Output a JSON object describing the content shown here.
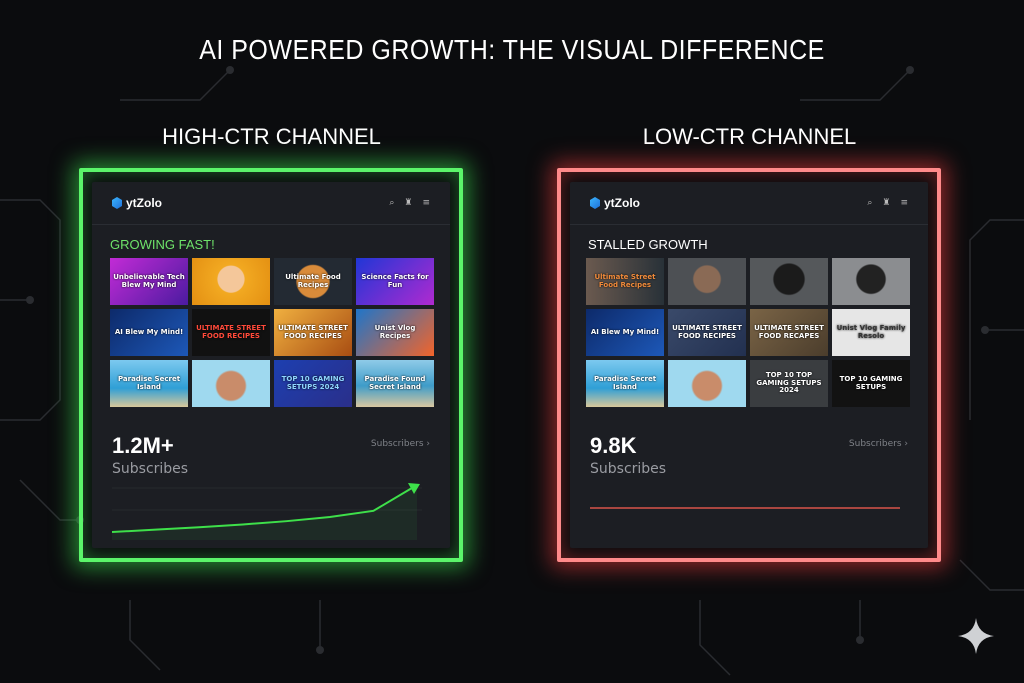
{
  "title": "AI POWERED GROWTH: THE VISUAL DIFFERENCE",
  "colors": {
    "high": "#5bf56a",
    "low": "#ff8a8a",
    "background": "#0b0c0e",
    "panel": "#1c1e23"
  },
  "high": {
    "heading": "HIGH-CTR CHANNEL",
    "brand": "ytZolo",
    "icons": [
      "search-icon",
      "bell-icon",
      "menu-icon"
    ],
    "section": "GROWING FAST!",
    "thumbnails": [
      {
        "text": "Unbelievable Tech Blew My Mind",
        "bg": "linear-gradient(135deg,#c22bd6,#4b1ba0)",
        "color": "#fff"
      },
      {
        "text": "",
        "bg": "radial-gradient(circle at 50% 45%,#f4c79a 0 28%,#f2a921 30%,#e38f12)",
        "color": "#fff"
      },
      {
        "text": "Ultimate Food Recipes",
        "bg": "radial-gradient(circle,#d98b3a 0 35%,#232a33 38%)",
        "color": "#fff"
      },
      {
        "text": "Science Facts for Fun",
        "bg": "linear-gradient(135deg,#2036d6,#b02ad0)",
        "color": "#fff"
      },
      {
        "text": "AI Blew My Mind!",
        "bg": "linear-gradient(135deg,#0d2a6a,#1d58b8)",
        "color": "#fff"
      },
      {
        "text": "ULTIMATE STREET FOOD RECIPES",
        "bg": "#111",
        "color": "#ff4a3a"
      },
      {
        "text": "ULTIMATE STREET FOOD RECIPES",
        "bg": "linear-gradient(135deg,#f0b040,#a84d12)",
        "color": "#fff"
      },
      {
        "text": "Unist Vlog Recipes",
        "bg": "linear-gradient(135deg,#1f75c9,#f2642a)",
        "color": "#fff"
      },
      {
        "text": "Paradise Secret Island",
        "bg": "linear-gradient(180deg,#7cc9ef,#2f9fd6 60%,#d8c89a)",
        "color": "#fff"
      },
      {
        "text": "",
        "bg": "radial-gradient(circle at 50% 55%,#c98c6a 0 30%,#9fd9ef 34%)",
        "color": "#fff"
      },
      {
        "text": "TOP 10 GAMING SETUPS 2024",
        "bg": "linear-gradient(135deg,#1d3fb0,#2a2f8a)",
        "color": "#8fd6ff"
      },
      {
        "text": "Paradise Found Secret Island",
        "bg": "linear-gradient(180deg,#8fcbe8,#3e9cc9 55%,#d9c7a0)",
        "color": "#fff"
      }
    ],
    "count": "1.2M+",
    "count_label": "Subscribes",
    "link": "Subscribers",
    "trend": [
      0,
      0.05,
      0.1,
      0.16,
      0.23,
      0.32,
      0.45,
      1
    ]
  },
  "low": {
    "heading": "LOW-CTR CHANNEL",
    "brand": "ytZolo",
    "icons": [
      "search-icon",
      "bell-icon",
      "menu-icon"
    ],
    "section": "STALLED GROWTH",
    "thumbnails": [
      {
        "text": "Ultimate Street Food Recipes",
        "bg": "linear-gradient(90deg,#6b5a4f,#283138)",
        "color": "#f08a3a"
      },
      {
        "text": "",
        "bg": "radial-gradient(circle at 50% 45%,#8a6a55 0 28%,#4d5054 31%)",
        "color": "#fff"
      },
      {
        "text": "",
        "bg": "radial-gradient(circle at 50% 45%,#1b1b1b 0 32%,#55585b 35%)",
        "color": "#fff"
      },
      {
        "text": "",
        "bg": "radial-gradient(circle at 50% 45%,#222 0 30%,#8b8d90 33%)",
        "color": "#fff"
      },
      {
        "text": "AI Blew My Mind!",
        "bg": "linear-gradient(135deg,#0d2a6a,#1d58b8)",
        "color": "#fff"
      },
      {
        "text": "ULTIMATE STREET FOOD RECIPES",
        "bg": "linear-gradient(135deg,#3a4a6a,#223050)",
        "color": "#fff"
      },
      {
        "text": "ULTIMATE STREET FOOD RECAPES",
        "bg": "linear-gradient(135deg,#7a6446,#4b3d2c)",
        "color": "#fff"
      },
      {
        "text": "Unist Vlog Family Resolo",
        "bg": "#e6e6e6",
        "color": "#333"
      },
      {
        "text": "Paradise Secret Island",
        "bg": "linear-gradient(180deg,#7cc9ef,#2f9fd6 60%,#d8c89a)",
        "color": "#fff"
      },
      {
        "text": "",
        "bg": "radial-gradient(circle at 50% 55%,#c98c6a 0 30%,#9fd9ef 34%)",
        "color": "#fff"
      },
      {
        "text": "TOP 10 TOP GAMING SETUPS 2024",
        "bg": "#3a3d40",
        "color": "#fff"
      },
      {
        "text": "TOP 10 GAMING SETUPS",
        "bg": "#121212",
        "color": "#fff"
      }
    ],
    "count": "9.8K",
    "count_label": "Subscribes",
    "link": "Subscribers",
    "trend": [
      0,
      0,
      0,
      0,
      0,
      0,
      0,
      0
    ]
  }
}
